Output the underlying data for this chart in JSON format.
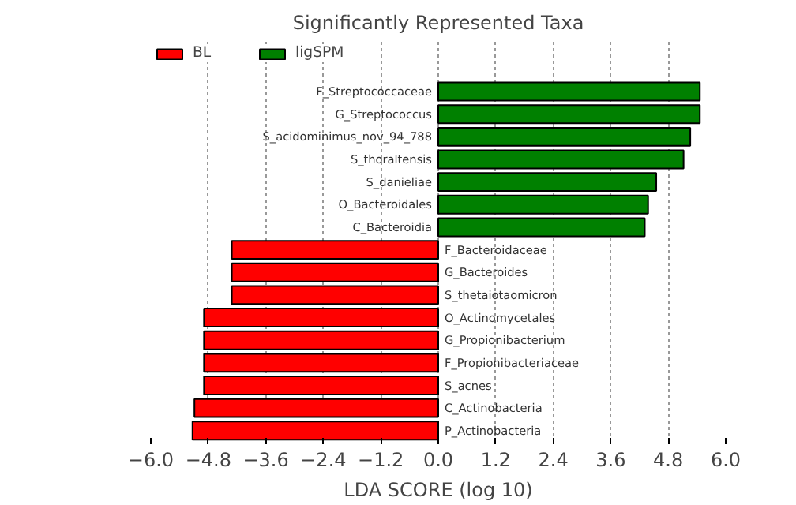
{
  "chart_data": {
    "type": "bar",
    "orientation": "horizontal",
    "title": "Significantly Represented Taxa",
    "xlabel": "LDA SCORE (log 10)",
    "categories": [
      "F_Streptococcaceae",
      "G_Streptococcus",
      "S_acidominimus_nov_94_788",
      "S_thoraltensis",
      "S_danieliae",
      "O_Bacteroidales",
      "C_Bacteroidia",
      "F_Bacteroidaceae",
      "G_Bacteroides",
      "S_thetaiotaomicron",
      "O_Actinomycetales",
      "G_Propionibacterium",
      "F_Propionibacteriaceae",
      "S_acnes",
      "C_Actinobacteria",
      "P_Actinobacteria"
    ],
    "series": [
      {
        "name": "BL",
        "color": "#ff0000",
        "values": [
          null,
          null,
          null,
          null,
          null,
          null,
          null,
          -4.31,
          -4.31,
          -4.31,
          -4.89,
          -4.89,
          -4.89,
          -4.89,
          -5.09,
          -5.13
        ]
      },
      {
        "name": "ligSPM",
        "color": "#008000",
        "values": [
          5.46,
          5.46,
          5.26,
          5.12,
          4.55,
          4.38,
          4.31,
          null,
          null,
          null,
          null,
          null,
          null,
          null,
          null,
          null
        ]
      }
    ],
    "xlim": [
      -6.0,
      6.0
    ],
    "xticks": [
      {
        "value": -6.0,
        "label": "−6.0"
      },
      {
        "value": -4.8,
        "label": "−4.8"
      },
      {
        "value": -3.6,
        "label": "−3.6"
      },
      {
        "value": -2.4,
        "label": "−2.4"
      },
      {
        "value": -1.2,
        "label": "−1.2"
      },
      {
        "value": 0.0,
        "label": "0.0"
      },
      {
        "value": 1.2,
        "label": "1.2"
      },
      {
        "value": 2.4,
        "label": "2.4"
      },
      {
        "value": 3.6,
        "label": "3.6"
      },
      {
        "value": 4.8,
        "label": "4.8"
      },
      {
        "value": 6.0,
        "label": "6.0"
      }
    ],
    "grid": "x",
    "legend": "top left",
    "tick_labels": "x"
  }
}
